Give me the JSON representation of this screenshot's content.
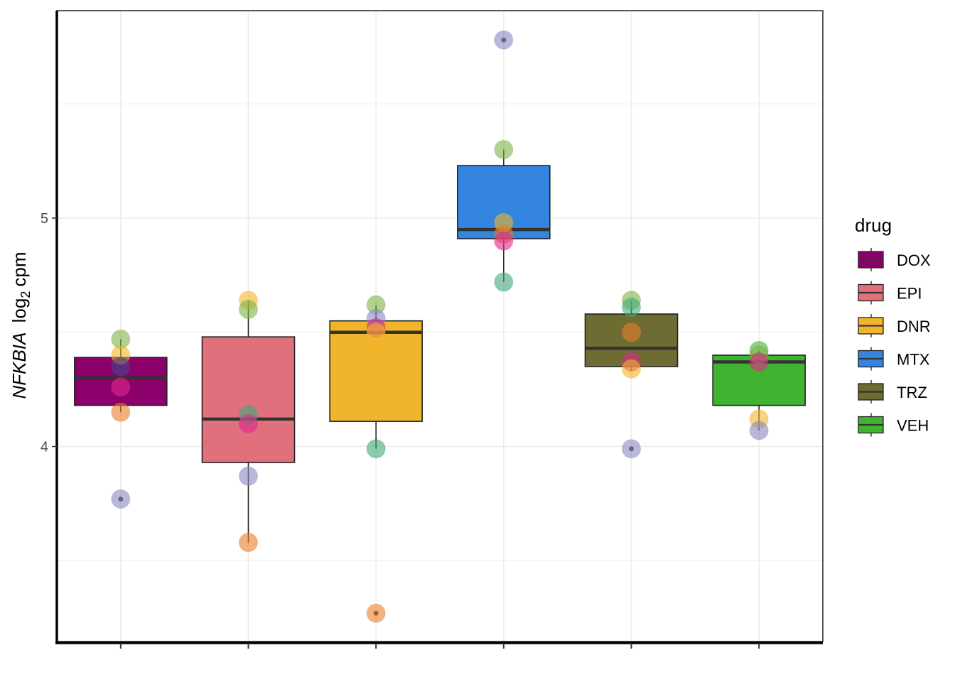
{
  "chart_data": {
    "type": "box",
    "title": "",
    "xlabel": "",
    "ylabel": {
      "gene": "NFKBIA",
      "log": "log",
      "sub": "2",
      "unit": "cpm"
    },
    "ylim": [
      3.3,
      5.85
    ],
    "yticks": [
      4,
      5
    ],
    "grid": true,
    "legend": {
      "title": "drug",
      "position": "right"
    },
    "categories": [
      "DOX",
      "EPI",
      "DNR",
      "MTX",
      "TRZ",
      "VEH"
    ],
    "boxes": [
      {
        "name": "DOX",
        "color": "#8B006B",
        "q1": 4.18,
        "median": 4.3,
        "q3": 4.39,
        "whisker_low": 4.15,
        "whisker_high": 4.47,
        "outliers": [
          3.77
        ]
      },
      {
        "name": "EPI",
        "color": "#DF707C",
        "q1": 3.93,
        "median": 4.12,
        "q3": 4.48,
        "whisker_low": 3.58,
        "whisker_high": 4.64,
        "outliers": []
      },
      {
        "name": "DNR",
        "color": "#F0B52A",
        "q1": 4.11,
        "median": 4.5,
        "q3": 4.55,
        "whisker_low": 3.99,
        "whisker_high": 4.62,
        "outliers": [
          3.27
        ]
      },
      {
        "name": "MTX",
        "color": "#3485E0",
        "q1": 4.91,
        "median": 4.95,
        "q3": 5.23,
        "whisker_low": 4.72,
        "whisker_high": 5.3,
        "outliers": [
          5.78
        ]
      },
      {
        "name": "TRZ",
        "color": "#6D6C32",
        "q1": 4.35,
        "median": 4.43,
        "q3": 4.58,
        "whisker_low": 4.33,
        "whisker_high": 4.64,
        "outliers": [
          3.99
        ]
      },
      {
        "name": "VEH",
        "color": "#40B330",
        "q1": 4.18,
        "median": 4.37,
        "q3": 4.4,
        "whisker_low": 4.07,
        "whisker_high": 4.42,
        "outliers": []
      }
    ],
    "points": [
      {
        "group": "DOX",
        "values": [
          4.47,
          4.4,
          4.35,
          4.26,
          4.15,
          3.77
        ],
        "colors": [
          "#7FB347",
          "#F0B52A",
          "#3F4A8A",
          "#E0288A",
          "#E87E2C",
          "#8B88C4"
        ]
      },
      {
        "group": "EPI",
        "values": [
          4.64,
          4.6,
          4.14,
          4.1,
          3.87,
          3.58
        ],
        "colors": [
          "#F0B52A",
          "#7FB347",
          "#3FA87A",
          "#E0288A",
          "#8B88C4",
          "#E87E2C"
        ]
      },
      {
        "group": "DNR",
        "values": [
          4.62,
          4.56,
          4.52,
          4.5,
          3.99,
          3.27
        ],
        "colors": [
          "#7FB347",
          "#8B88C4",
          "#E0288A",
          "#F0B52A",
          "#3FA87A",
          "#E87E2C"
        ]
      },
      {
        "group": "MTX",
        "values": [
          5.78,
          5.3,
          4.98,
          4.93,
          4.9,
          4.72
        ],
        "colors": [
          "#8B88C4",
          "#7FB347",
          "#F0B52A",
          "#E87E2C",
          "#E0288A",
          "#3FA87A"
        ]
      },
      {
        "group": "TRZ",
        "values": [
          4.64,
          4.61,
          4.5,
          4.37,
          4.34,
          3.99
        ],
        "colors": [
          "#7FB347",
          "#3FA87A",
          "#E87E2C",
          "#E0288A",
          "#F0B52A",
          "#8B88C4"
        ]
      },
      {
        "group": "VEH",
        "values": [
          4.42,
          4.4,
          4.37,
          4.12,
          4.07
        ],
        "colors": [
          "#40B330",
          "#7FB347",
          "#E0288A",
          "#F0B52A",
          "#8B88C4"
        ]
      }
    ]
  }
}
